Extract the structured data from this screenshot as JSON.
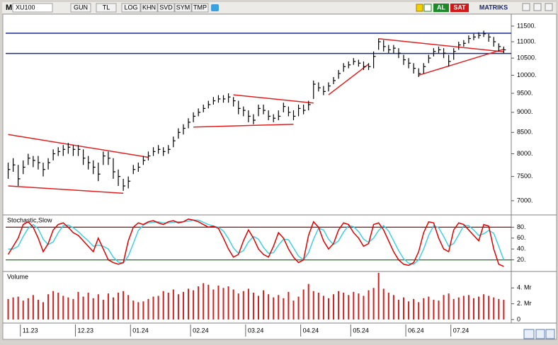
{
  "toolbar": {
    "menu": "M",
    "symbol": "XU100",
    "buttons": [
      "GUN",
      "TL",
      "LOG",
      "KHN",
      "SVD",
      "SYM",
      "TMP"
    ],
    "buy": "AL",
    "sell": "SAT",
    "brand": "MATRIKS"
  },
  "chart_data": [
    {
      "type": "ohlc",
      "color": "#000000",
      "log_scale": true,
      "ylim": [
        6750,
        11850
      ],
      "yticks": [
        {
          "value": 7000,
          "label": "7000."
        },
        {
          "value": 7500,
          "label": "7500."
        },
        {
          "value": 8000,
          "label": "8000."
        },
        {
          "value": 8500,
          "label": "8500."
        },
        {
          "value": 9000,
          "label": "9000."
        },
        {
          "value": 9500,
          "label": "9500."
        },
        {
          "value": 10000,
          "label": "10000."
        },
        {
          "value": 10500,
          "label": "10500."
        },
        {
          "value": 11000,
          "label": "11000."
        },
        {
          "value": 11500,
          "label": "11500."
        }
      ],
      "high": [
        7800,
        7900,
        7750,
        7850,
        8000,
        7950,
        7950,
        7800,
        7900,
        8100,
        8150,
        8200,
        8250,
        8200,
        8200,
        8100,
        7950,
        7850,
        7800,
        8050,
        8050,
        7900,
        7650,
        7450,
        7500,
        7750,
        7800,
        7950,
        8050,
        8150,
        8200,
        8150,
        8200,
        8400,
        8600,
        8700,
        8850,
        9000,
        9100,
        9200,
        9300,
        9400,
        9450,
        9450,
        9500,
        9400,
        9300,
        9150,
        9050,
        8950,
        9200,
        9200,
        9050,
        8950,
        9050,
        9250,
        9150,
        9050,
        9200,
        9200,
        9300,
        9850,
        9800,
        9700,
        9800,
        9950,
        10150,
        10350,
        10400,
        10500,
        10450,
        10400,
        10350,
        10700,
        11100,
        11050,
        10900,
        10900,
        10800,
        10600,
        10500,
        10350,
        10200,
        10350,
        10600,
        10800,
        10850,
        10800,
        10600,
        10800,
        11000,
        11050,
        11200,
        11250,
        11300,
        11350,
        11250,
        11150,
        10950,
        10850
      ],
      "low": [
        7450,
        7600,
        7300,
        7550,
        7750,
        7700,
        7650,
        7500,
        7650,
        7850,
        7950,
        7950,
        8000,
        7950,
        7950,
        7750,
        7650,
        7550,
        7400,
        7750,
        7750,
        7450,
        7300,
        7200,
        7250,
        7550,
        7600,
        7750,
        7850,
        7950,
        8000,
        7950,
        8000,
        8150,
        8350,
        8450,
        8600,
        8750,
        8900,
        9000,
        9100,
        9200,
        9250,
        9250,
        9250,
        9150,
        8950,
        8900,
        8750,
        8700,
        8900,
        8950,
        8800,
        8750,
        8800,
        9000,
        8900,
        8800,
        8900,
        8950,
        9050,
        9350,
        9550,
        9450,
        9550,
        9750,
        9900,
        10100,
        10200,
        10300,
        10250,
        10150,
        10150,
        10200,
        10750,
        10700,
        10650,
        10650,
        10500,
        10300,
        10200,
        10050,
        9950,
        10050,
        10350,
        10550,
        10650,
        10500,
        10250,
        10450,
        10750,
        10850,
        10950,
        11050,
        11100,
        11150,
        11000,
        10850,
        10700,
        10650
      ],
      "close": [
        7650,
        7750,
        7450,
        7700,
        7900,
        7850,
        7800,
        7650,
        7800,
        8000,
        8050,
        8100,
        8150,
        8100,
        8100,
        7900,
        7800,
        7700,
        7550,
        7950,
        7900,
        7600,
        7500,
        7300,
        7400,
        7650,
        7700,
        7850,
        7950,
        8050,
        8100,
        8050,
        8100,
        8300,
        8500,
        8600,
        8750,
        8900,
        9000,
        9100,
        9200,
        9300,
        9350,
        9350,
        9400,
        9300,
        9100,
        9050,
        8900,
        8800,
        9100,
        9050,
        8900,
        8850,
        8900,
        9150,
        9000,
        8900,
        9100,
        9050,
        9200,
        9750,
        9650,
        9550,
        9700,
        9850,
        10050,
        10250,
        10300,
        10400,
        10350,
        10250,
        10250,
        10550,
        11000,
        10850,
        10750,
        10800,
        10650,
        10450,
        10350,
        10200,
        10050,
        10250,
        10500,
        10700,
        10750,
        10650,
        10400,
        10700,
        10900,
        10950,
        11100,
        11150,
        11200,
        11250,
        11150,
        11000,
        10850,
        10750
      ],
      "hlines": [
        11270,
        10640
      ],
      "hline_color": "#1a2a9a",
      "trendlines": [
        {
          "from": [
            0,
            8450
          ],
          "to": [
            28,
            7920
          ]
        },
        {
          "from": [
            0,
            7300
          ],
          "to": [
            23,
            7150
          ]
        },
        {
          "from": [
            37,
            8630
          ],
          "to": [
            57,
            8700
          ]
        },
        {
          "from": [
            45,
            9460
          ],
          "to": [
            61,
            9240
          ]
        },
        {
          "from": [
            64,
            9460
          ],
          "to": [
            72,
            10320
          ]
        },
        {
          "from": [
            74,
            11095
          ],
          "to": [
            99,
            10690
          ]
        },
        {
          "from": [
            82,
            10000
          ],
          "to": [
            99,
            10770
          ]
        }
      ],
      "trend_color": "#e02020"
    },
    {
      "type": "line",
      "title": "Stochastic,Slow",
      "ylim": [
        0,
        100
      ],
      "yticks": [
        {
          "value": 20,
          "label": "20."
        },
        {
          "value": 40,
          "label": "40."
        },
        {
          "value": 60,
          "label": "60."
        },
        {
          "value": 80,
          "label": "80."
        }
      ],
      "levels": [
        80,
        20
      ],
      "level_colors": [
        "#8b1010",
        "#108010"
      ],
      "series": [
        {
          "color": "#e00000",
          "values": [
            30,
            45,
            60,
            85,
            90,
            80,
            60,
            35,
            50,
            75,
            85,
            88,
            80,
            70,
            65,
            55,
            45,
            35,
            60,
            40,
            20,
            15,
            12,
            15,
            55,
            80,
            88,
            85,
            90,
            92,
            88,
            85,
            90,
            92,
            88,
            90,
            95,
            93,
            90,
            85,
            80,
            82,
            78,
            60,
            40,
            25,
            30,
            55,
            75,
            60,
            40,
            30,
            25,
            45,
            70,
            60,
            40,
            25,
            15,
            20,
            65,
            90,
            80,
            55,
            40,
            50,
            75,
            88,
            85,
            70,
            60,
            45,
            50,
            85,
            88,
            75,
            55,
            35,
            20,
            12,
            10,
            15,
            35,
            70,
            90,
            88,
            60,
            40,
            35,
            75,
            88,
            85,
            75,
            65,
            55,
            85,
            82,
            40,
            12,
            8
          ]
        },
        {
          "color": "#40d0e0",
          "values": [
            40,
            40,
            45,
            63,
            78,
            85,
            77,
            58,
            48,
            53,
            70,
            83,
            84,
            79,
            72,
            63,
            55,
            45,
            47,
            45,
            40,
            25,
            16,
            14,
            27,
            50,
            74,
            84,
            88,
            89,
            90,
            88,
            88,
            89,
            90,
            90,
            91,
            93,
            93,
            89,
            85,
            82,
            80,
            73,
            59,
            42,
            32,
            37,
            53,
            63,
            58,
            43,
            32,
            33,
            47,
            58,
            57,
            42,
            27,
            20,
            33,
            58,
            78,
            75,
            58,
            48,
            55,
            71,
            83,
            81,
            72,
            58,
            52,
            60,
            74,
            83,
            73,
            55,
            37,
            22,
            14,
            12,
            20,
            40,
            65,
            83,
            79,
            63,
            45,
            50,
            66,
            83,
            83,
            75,
            65,
            68,
            74,
            69,
            45,
            20
          ]
        }
      ]
    },
    {
      "type": "bar",
      "title": "Volume",
      "color": "#d02020",
      "ylim": [
        0,
        5.9
      ],
      "yticks": [
        0,
        {
          "value": 2,
          "label": "2. Mr"
        },
        {
          "value": 4,
          "label": "4. Mr"
        }
      ],
      "categories": [
        null,
        null,
        null,
        "11.23",
        null,
        null,
        null,
        null,
        null,
        null,
        null,
        null,
        null,
        null,
        "12.23",
        null,
        null,
        null,
        null,
        null,
        null,
        null,
        null,
        null,
        null,
        "01.24",
        null,
        null,
        null,
        null,
        null,
        null,
        null,
        null,
        null,
        null,
        null,
        "02.24",
        null,
        null,
        null,
        null,
        null,
        null,
        null,
        null,
        null,
        null,
        "03.24",
        null,
        null,
        null,
        null,
        null,
        null,
        null,
        null,
        null,
        null,
        "04.24",
        null,
        null,
        null,
        null,
        null,
        null,
        null,
        null,
        null,
        "05.24",
        null,
        null,
        null,
        null,
        null,
        null,
        null,
        null,
        null,
        null,
        "06.24",
        null,
        null,
        null,
        null,
        null,
        null,
        null,
        null,
        "07.24",
        null,
        null,
        null,
        null,
        null,
        null,
        null,
        null,
        null,
        null
      ],
      "values": [
        2.6,
        2.8,
        2.9,
        2.4,
        2.7,
        3.1,
        2.5,
        2.2,
        3.2,
        3.6,
        3.4,
        3.0,
        2.8,
        2.6,
        3.5,
        2.9,
        3.4,
        2.7,
        3.2,
        2.5,
        3.3,
        2.8,
        3.4,
        3.6,
        3.1,
        2.4,
        2.2,
        2.3,
        2.6,
        2.9,
        3.0,
        3.6,
        3.4,
        3.8,
        3.2,
        3.5,
        3.9,
        3.7,
        4.2,
        4.6,
        4.4,
        3.8,
        4.3,
        4.0,
        4.2,
        3.8,
        3.3,
        3.6,
        3.9,
        3.4,
        3.0,
        3.7,
        3.2,
        2.8,
        3.1,
        2.7,
        3.5,
        2.4,
        2.9,
        3.8,
        4.5,
        3.6,
        3.4,
        3.0,
        2.7,
        3.2,
        3.6,
        3.4,
        3.1,
        3.5,
        3.3,
        3.0,
        3.7,
        4.0,
        5.9,
        3.9,
        3.4,
        3.1,
        2.5,
        2.8,
        2.3,
        2.6,
        2.2,
        2.7,
        2.9,
        2.5,
        2.4,
        3.1,
        3.3,
        2.6,
        2.8,
        3.0,
        3.1,
        2.7,
        2.9,
        3.2,
        3.0,
        2.8,
        2.6,
        2.5
      ]
    }
  ]
}
